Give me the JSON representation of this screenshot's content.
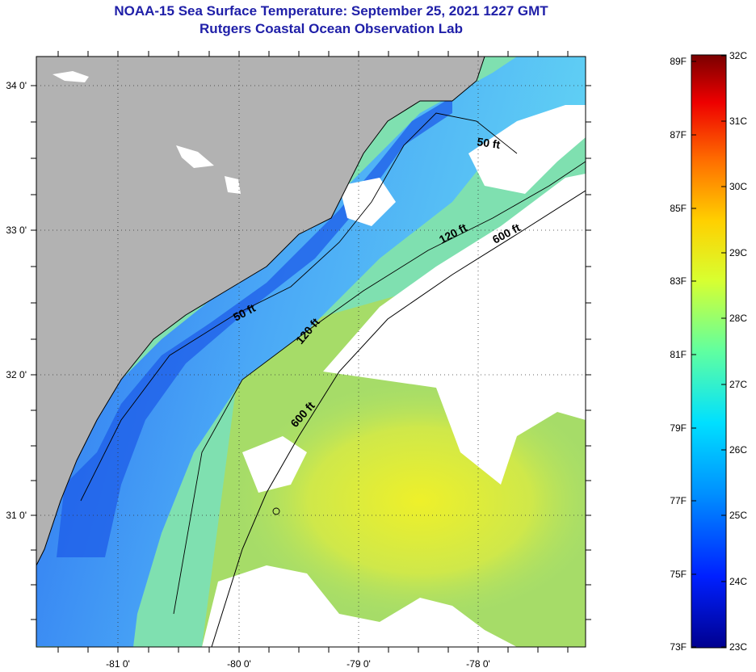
{
  "title": {
    "line1": "NOAA-15 Sea Surface Temperature:  September 25, 2021 1227 GMT",
    "line2": "Rutgers Coastal Ocean Observation Lab"
  },
  "map": {
    "lat_labels": [
      "34 0'",
      "33 0'",
      "32 0'",
      "31 0'"
    ],
    "lon_labels": [
      "-81 0'",
      "-80 0'",
      "-79 0'",
      "-78 0'"
    ],
    "contour_labels": [
      "50 ft",
      "50 ft",
      "120 ft",
      "120 ft",
      "600 ft",
      "600 ft"
    ]
  },
  "colorbar": {
    "fahrenheit": [
      "89F",
      "87F",
      "85F",
      "83F",
      "81F",
      "79F",
      "77F",
      "75F",
      "73F"
    ],
    "celsius": [
      "32C",
      "31C",
      "30C",
      "29C",
      "28C",
      "27C",
      "26C",
      "25C",
      "24C",
      "23C"
    ]
  }
}
